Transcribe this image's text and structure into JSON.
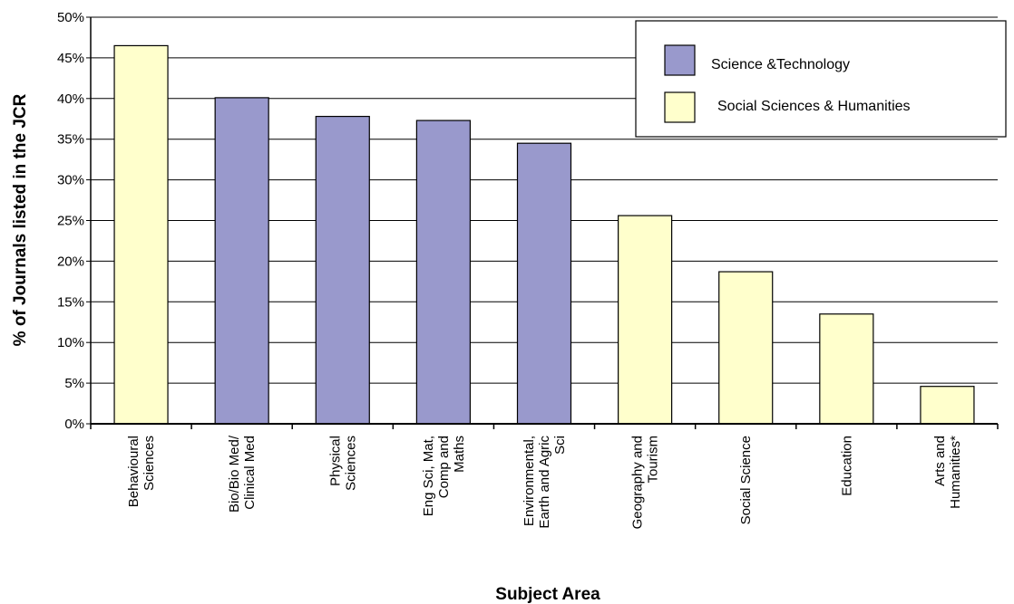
{
  "chart_data": {
    "type": "bar",
    "title": "",
    "xlabel": "Subject Area",
    "ylabel": "% of Journals listed in the JCR",
    "ylim": [
      0,
      50
    ],
    "ytick_step": 5,
    "ytick_labels": [
      "0%",
      "5%",
      "10%",
      "15%",
      "20%",
      "25%",
      "30%",
      "35%",
      "40%",
      "45%",
      "50%"
    ],
    "grid": true,
    "legend_position": "top-right",
    "categories": [
      [
        "Behavioural",
        "Sciences"
      ],
      [
        "Bio/Bio Med/",
        "Clinical Med"
      ],
      [
        "Physical",
        "Sciences"
      ],
      [
        "Eng Sci, Mat,",
        "Comp and",
        "Maths"
      ],
      [
        "Environmental,",
        "Earth and Agric",
        "Sci"
      ],
      [
        "Geography and",
        "Tourism"
      ],
      [
        "Social Science"
      ],
      [
        "Education"
      ],
      [
        "Arts and",
        "Humanities*"
      ]
    ],
    "values": [
      46.5,
      40.1,
      37.8,
      37.3,
      34.5,
      25.6,
      18.7,
      13.5,
      4.6
    ],
    "groups": [
      "ssh",
      "st",
      "st",
      "st",
      "st",
      "ssh",
      "ssh",
      "ssh",
      "ssh"
    ],
    "legend": [
      {
        "key": "st",
        "name": "Science &Technology",
        "color": "#9999cc"
      },
      {
        "key": "ssh",
        "name": "Social Sciences & Humanities",
        "color": "#ffffcc"
      }
    ]
  }
}
